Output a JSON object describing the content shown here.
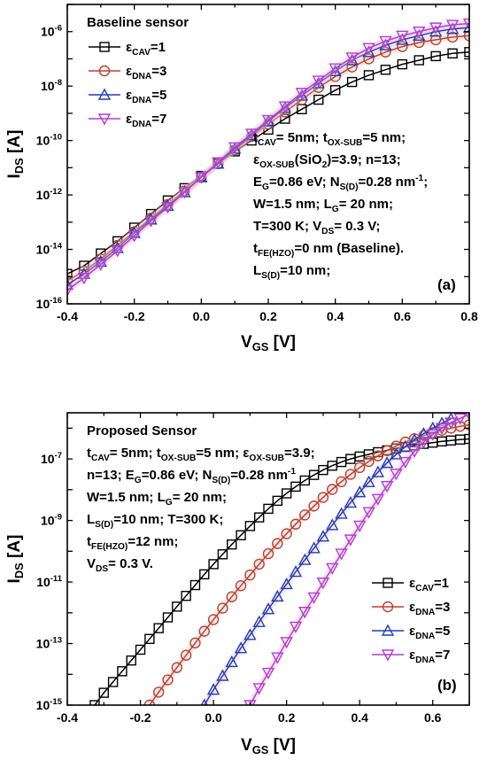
{
  "chart_data": [
    {
      "type": "line",
      "panel": "(a)",
      "title": "Baseline sensor",
      "xlabel": "V_GS [V]",
      "ylabel": "I_DS [A]",
      "xlim": [
        -0.4,
        0.8
      ],
      "ylim_log10": [
        -16,
        -5
      ],
      "yscale": "log",
      "x_ticks": [
        "-0.4",
        "-0.2",
        "0.0",
        "0.2",
        "0.4",
        "0.6",
        "0.8"
      ],
      "y_ticks": [
        {
          "base": "10",
          "exp": "-16"
        },
        {
          "base": "10",
          "exp": "-14"
        },
        {
          "base": "10",
          "exp": "-12"
        },
        {
          "base": "10",
          "exp": "-10"
        },
        {
          "base": "10",
          "exp": "-8"
        },
        {
          "base": "10",
          "exp": "-6"
        }
      ],
      "legend_position": "top-left",
      "annotation_lines": [
        [
          {
            "t": "t"
          },
          {
            "t": "CAV",
            "s": "sub"
          },
          {
            "t": "= 5nm; t"
          },
          {
            "t": "OX-SUB",
            "s": "sub"
          },
          {
            "t": "=5 nm;"
          }
        ],
        [
          {
            "t": "ε"
          },
          {
            "t": "OX-SUB",
            "s": "sub"
          },
          {
            "t": "(SiO"
          },
          {
            "t": "2",
            "s": "sub"
          },
          {
            "t": ")=3.9; n=13;"
          }
        ],
        [
          {
            "t": "E"
          },
          {
            "t": "G",
            "s": "sub"
          },
          {
            "t": "=0.86 eV; N"
          },
          {
            "t": "S(D)",
            "s": "sub"
          },
          {
            "t": "=0.28 nm"
          },
          {
            "t": "-1",
            "s": "sup"
          },
          {
            "t": ";"
          }
        ],
        [
          {
            "t": "W=1.5 nm; L"
          },
          {
            "t": "G",
            "s": "sub"
          },
          {
            "t": "= 20 nm;"
          }
        ],
        [
          {
            "t": "T=300 K; V"
          },
          {
            "t": "DS",
            "s": "sub"
          },
          {
            "t": "= 0.3 V;"
          }
        ],
        [
          {
            "t": "t"
          },
          {
            "t": "FE(HZO)",
            "s": "sub"
          },
          {
            "t": "=0 nm (Baseline)."
          }
        ],
        [
          {
            "t": "L"
          },
          {
            "t": "S(D)",
            "s": "sub"
          },
          {
            "t": "=10 nm;"
          }
        ]
      ],
      "series": [
        {
          "name": "ε_CAV=1",
          "label_main": "ε",
          "label_sub": "CAV",
          "label_rest": "=1",
          "color": "#000000",
          "marker": "square",
          "x": [
            -0.4,
            -0.35,
            -0.3,
            -0.25,
            -0.2,
            -0.15,
            -0.1,
            -0.05,
            0.0,
            0.05,
            0.1,
            0.15,
            0.2,
            0.25,
            0.3,
            0.35,
            0.4,
            0.45,
            0.5,
            0.55,
            0.6,
            0.65,
            0.7,
            0.75,
            0.8
          ],
          "y_log10": [
            -14.9,
            -14.6,
            -14.15,
            -13.7,
            -13.2,
            -12.7,
            -12.2,
            -11.75,
            -11.3,
            -10.85,
            -10.4,
            -10.0,
            -9.6,
            -9.2,
            -8.85,
            -8.5,
            -8.15,
            -7.85,
            -7.6,
            -7.4,
            -7.2,
            -7.05,
            -6.9,
            -6.8,
            -6.75
          ]
        },
        {
          "name": "ε_DNA=3",
          "label_main": "ε",
          "label_sub": "DNA",
          "label_rest": "=3",
          "color": "#b5442a",
          "marker": "circle",
          "x": [
            -0.4,
            -0.35,
            -0.3,
            -0.25,
            -0.2,
            -0.15,
            -0.1,
            -0.05,
            0.0,
            0.05,
            0.1,
            0.15,
            0.2,
            0.25,
            0.3,
            0.35,
            0.4,
            0.45,
            0.5,
            0.55,
            0.6,
            0.65,
            0.7,
            0.75,
            0.8
          ],
          "y_log10": [
            -15.15,
            -14.8,
            -14.35,
            -13.85,
            -13.35,
            -12.85,
            -12.35,
            -11.85,
            -11.35,
            -10.85,
            -10.35,
            -9.85,
            -9.4,
            -8.95,
            -8.5,
            -8.05,
            -7.65,
            -7.3,
            -7.0,
            -6.75,
            -6.55,
            -6.4,
            -6.3,
            -6.2,
            -6.15
          ]
        },
        {
          "name": "ε_DNA=5",
          "label_main": "ε",
          "label_sub": "DNA",
          "label_rest": "=5",
          "color": "#1f3fb5",
          "marker": "triangle-up",
          "x": [
            -0.4,
            -0.35,
            -0.3,
            -0.25,
            -0.2,
            -0.15,
            -0.1,
            -0.05,
            0.0,
            0.05,
            0.1,
            0.15,
            0.2,
            0.25,
            0.3,
            0.35,
            0.4,
            0.45,
            0.5,
            0.55,
            0.6,
            0.65,
            0.7,
            0.75,
            0.8
          ],
          "y_log10": [
            -15.3,
            -14.9,
            -14.45,
            -13.95,
            -13.4,
            -12.9,
            -12.4,
            -11.9,
            -11.35,
            -10.85,
            -10.3,
            -9.8,
            -9.3,
            -8.8,
            -8.35,
            -7.9,
            -7.45,
            -7.05,
            -6.75,
            -6.5,
            -6.3,
            -6.15,
            -6.0,
            -5.9,
            -5.85
          ]
        },
        {
          "name": "ε_DNA=7",
          "label_main": "ε",
          "label_sub": "DNA",
          "label_rest": "=7",
          "color": "#b33bd6",
          "marker": "triangle-down",
          "x": [
            -0.4,
            -0.35,
            -0.3,
            -0.25,
            -0.2,
            -0.15,
            -0.1,
            -0.05,
            0.0,
            0.05,
            0.1,
            0.15,
            0.2,
            0.25,
            0.3,
            0.35,
            0.4,
            0.45,
            0.5,
            0.55,
            0.6,
            0.65,
            0.7,
            0.75,
            0.8
          ],
          "y_log10": [
            -15.5,
            -15.05,
            -14.55,
            -14.05,
            -13.5,
            -12.95,
            -12.45,
            -11.9,
            -11.35,
            -10.8,
            -10.25,
            -9.75,
            -9.25,
            -8.75,
            -8.25,
            -7.8,
            -7.35,
            -6.95,
            -6.6,
            -6.35,
            -6.15,
            -6.0,
            -5.85,
            -5.75,
            -5.7
          ]
        }
      ]
    },
    {
      "type": "line",
      "panel": "(b)",
      "title": "Proposed Sensor",
      "xlabel": "V_GS [V]",
      "ylabel": "I_DS [A]",
      "xlim": [
        -0.4,
        0.7
      ],
      "ylim_log10": [
        -15,
        -5.5
      ],
      "yscale": "log",
      "x_ticks": [
        "-0.4",
        "-0.2",
        "0.0",
        "0.2",
        "0.4",
        "0.6"
      ],
      "y_ticks": [
        {
          "base": "10",
          "exp": "-15"
        },
        {
          "base": "10",
          "exp": "-13"
        },
        {
          "base": "10",
          "exp": "-11"
        },
        {
          "base": "10",
          "exp": "-9"
        },
        {
          "base": "10",
          "exp": "-7"
        }
      ],
      "legend_position": "bottom-right",
      "annotation_lines": [
        [
          {
            "t": "t"
          },
          {
            "t": "CAV",
            "s": "sub"
          },
          {
            "t": "= 5nm; t"
          },
          {
            "t": "OX-SUB",
            "s": "sub"
          },
          {
            "t": "=5 nm; ε"
          },
          {
            "t": "OX-SUB",
            "s": "sub"
          },
          {
            "t": "=3.9;"
          }
        ],
        [
          {
            "t": "n=13; E"
          },
          {
            "t": "G",
            "s": "sub"
          },
          {
            "t": "=0.86 eV; N"
          },
          {
            "t": "S(D)",
            "s": "sub"
          },
          {
            "t": "=0.28 nm"
          },
          {
            "t": "-1",
            "s": "sup"
          }
        ],
        [
          {
            "t": "W=1.5 nm; L"
          },
          {
            "t": "G",
            "s": "sub"
          },
          {
            "t": "= 20 nm;"
          }
        ],
        [
          {
            "t": "L"
          },
          {
            "t": "S(D)",
            "s": "sub"
          },
          {
            "t": "=10 nm; T=300 K;"
          }
        ],
        [
          {
            "t": "t"
          },
          {
            "t": "FE(HZO)",
            "s": "sub"
          },
          {
            "t": "=12 nm;"
          }
        ],
        [
          {
            "t": "V"
          },
          {
            "t": "DS",
            "s": "sub"
          },
          {
            "t": "= 0.3 V."
          }
        ]
      ],
      "series": [
        {
          "name": "ε_CAV=1",
          "label_main": "ε",
          "label_sub": "CAV",
          "label_rest": "=1",
          "color": "#000000",
          "marker": "square",
          "x": [
            -0.325,
            -0.3,
            -0.275,
            -0.25,
            -0.225,
            -0.2,
            -0.175,
            -0.15,
            -0.125,
            -0.1,
            -0.075,
            -0.05,
            -0.025,
            0.0,
            0.025,
            0.05,
            0.075,
            0.1,
            0.125,
            0.15,
            0.175,
            0.2,
            0.225,
            0.25,
            0.275,
            0.3,
            0.325,
            0.35,
            0.375,
            0.4,
            0.425,
            0.45,
            0.475,
            0.5,
            0.525,
            0.55,
            0.575,
            0.6,
            0.625,
            0.65,
            0.675,
            0.7
          ],
          "y_log10": [
            -15.0,
            -14.6,
            -14.25,
            -13.9,
            -13.55,
            -13.2,
            -12.85,
            -12.5,
            -12.15,
            -11.8,
            -11.45,
            -11.1,
            -10.75,
            -10.42,
            -10.1,
            -9.78,
            -9.48,
            -9.18,
            -8.9,
            -8.62,
            -8.36,
            -8.12,
            -7.9,
            -7.7,
            -7.52,
            -7.36,
            -7.22,
            -7.1,
            -7.0,
            -6.92,
            -6.85,
            -6.78,
            -6.72,
            -6.66,
            -6.61,
            -6.56,
            -6.51,
            -6.47,
            -6.43,
            -6.4,
            -6.37,
            -6.35
          ]
        },
        {
          "name": "ε_DNA=3",
          "label_main": "ε",
          "label_sub": "DNA",
          "label_rest": "=3",
          "color": "#b5442a",
          "marker": "circle",
          "x": [
            -0.175,
            -0.15,
            -0.125,
            -0.1,
            -0.075,
            -0.05,
            -0.025,
            0.0,
            0.025,
            0.05,
            0.075,
            0.1,
            0.125,
            0.15,
            0.175,
            0.2,
            0.225,
            0.25,
            0.275,
            0.3,
            0.325,
            0.35,
            0.375,
            0.4,
            0.425,
            0.45,
            0.475,
            0.5,
            0.525,
            0.55,
            0.575,
            0.6,
            0.625,
            0.65,
            0.675,
            0.7
          ],
          "y_log10": [
            -15.0,
            -14.58,
            -14.18,
            -13.78,
            -13.38,
            -12.98,
            -12.6,
            -12.22,
            -11.85,
            -11.48,
            -11.12,
            -10.77,
            -10.42,
            -10.08,
            -9.75,
            -9.43,
            -9.12,
            -8.82,
            -8.53,
            -8.25,
            -7.99,
            -7.74,
            -7.5,
            -7.28,
            -7.08,
            -6.9,
            -6.73,
            -6.58,
            -6.45,
            -6.34,
            -6.24,
            -6.15,
            -6.07,
            -6.0,
            -5.94,
            -5.89
          ]
        },
        {
          "name": "ε_DNA=5",
          "label_main": "ε",
          "label_sub": "DNA",
          "label_rest": "=5",
          "color": "#1f3fb5",
          "marker": "triangle-up",
          "x": [
            -0.025,
            0.0,
            0.025,
            0.05,
            0.075,
            0.1,
            0.125,
            0.15,
            0.175,
            0.2,
            0.225,
            0.25,
            0.275,
            0.3,
            0.325,
            0.35,
            0.375,
            0.4,
            0.425,
            0.45,
            0.475,
            0.5,
            0.525,
            0.55,
            0.575,
            0.6,
            0.625,
            0.65
          ],
          "y_log10": [
            -15.0,
            -14.5,
            -14.05,
            -13.6,
            -13.15,
            -12.72,
            -12.3,
            -11.88,
            -11.47,
            -11.07,
            -10.67,
            -10.28,
            -9.9,
            -9.52,
            -9.15,
            -8.78,
            -8.42,
            -8.08,
            -7.75,
            -7.43,
            -7.13,
            -6.85,
            -6.6,
            -6.38,
            -6.18,
            -6.0,
            -5.84,
            -5.7
          ]
        },
        {
          "name": "ε_DNA=7",
          "label_main": "ε",
          "label_sub": "DNA",
          "label_rest": "=7",
          "color": "#b33bd6",
          "marker": "triangle-down",
          "x": [
            0.1,
            0.125,
            0.15,
            0.175,
            0.2,
            0.225,
            0.25,
            0.275,
            0.3,
            0.325,
            0.35,
            0.375,
            0.4,
            0.425,
            0.45,
            0.475,
            0.5,
            0.525,
            0.55,
            0.575,
            0.6,
            0.625,
            0.65,
            0.675,
            0.7
          ],
          "y_log10": [
            -15.0,
            -14.45,
            -13.95,
            -13.45,
            -12.95,
            -12.45,
            -11.97,
            -11.5,
            -11.02,
            -10.55,
            -10.08,
            -9.62,
            -9.17,
            -8.73,
            -8.3,
            -7.88,
            -7.48,
            -7.1,
            -6.75,
            -6.45,
            -6.2,
            -6.0,
            -5.82,
            -5.68,
            -5.55
          ]
        }
      ]
    }
  ]
}
